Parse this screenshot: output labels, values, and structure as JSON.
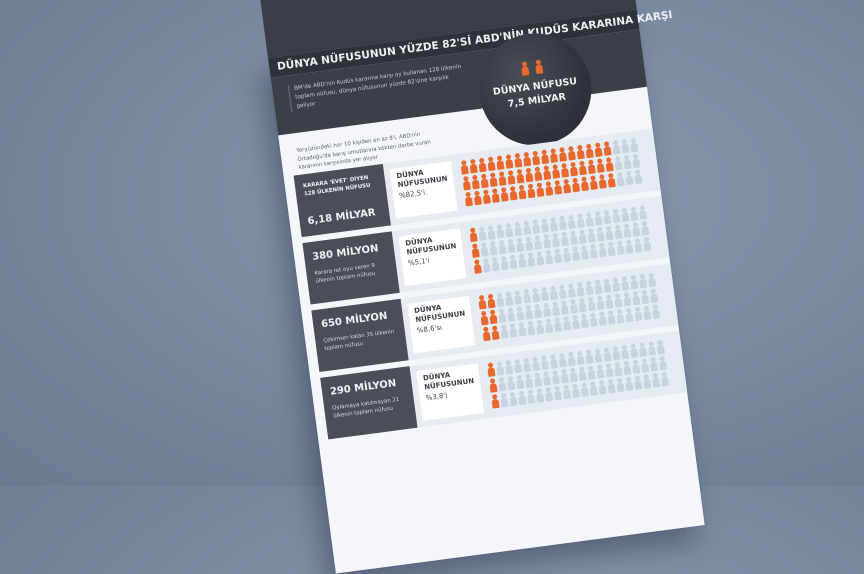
{
  "colors": {
    "accent": "#e8682e",
    "dark": "#3a3d44",
    "muted_icon": "#c9d3e0"
  },
  "header": {
    "title": "DÜNYA NÜFUSUNUN YÜZDE 82'Sİ ABD'NİN KUDÜS KARARINA KARŞI",
    "intro": "BM'de ABD'nin Kudüs kararına karşı oy kullanan 128 ülkenin toplam nüfusu, dünya nüfusunun yüzde 82'sine karşılık geliyor",
    "globe_label": "DÜNYA NÜFUSU",
    "globe_value": "7,5 MİLYAR"
  },
  "subhead": "Yeryüzündeki her 10 kişiden en az 8'i, ABD'nin Ortadoğu'da barış umutlarına kökten darbe vuran kararının karşısında yer alıyor",
  "rows": [
    {
      "big": "6,18 MİLYAR",
      "small": "KARARA 'EVET' DİYEN 128 ÜLKENİN NÜFUSU",
      "pct_label": "DÜNYA NÜFUSUNUN",
      "pct_value": "%82,5'i",
      "fill_fraction": 0.825
    },
    {
      "big": "380 MİLYON",
      "small": "Karara ret oyu veren 9 ülkenin toplam nüfusu",
      "pct_label": "DÜNYA NÜFUSUNUN",
      "pct_value": "%5,1'i",
      "fill_fraction": 0.051
    },
    {
      "big": "650 MİLYON",
      "small": "Çekimser kalan 35 ülkenin toplam nüfusu",
      "pct_label": "DÜNYA NÜFUSUNUN",
      "pct_value": "%8,6'sı",
      "fill_fraction": 0.086
    },
    {
      "big": "290 MİLYON",
      "small": "Oylamaya katılmayan 21 ülkenin toplam nüfusu",
      "pct_label": "DÜNYA NÜFUSUNUN",
      "pct_value": "%3,8'i",
      "fill_fraction": 0.038
    }
  ]
}
